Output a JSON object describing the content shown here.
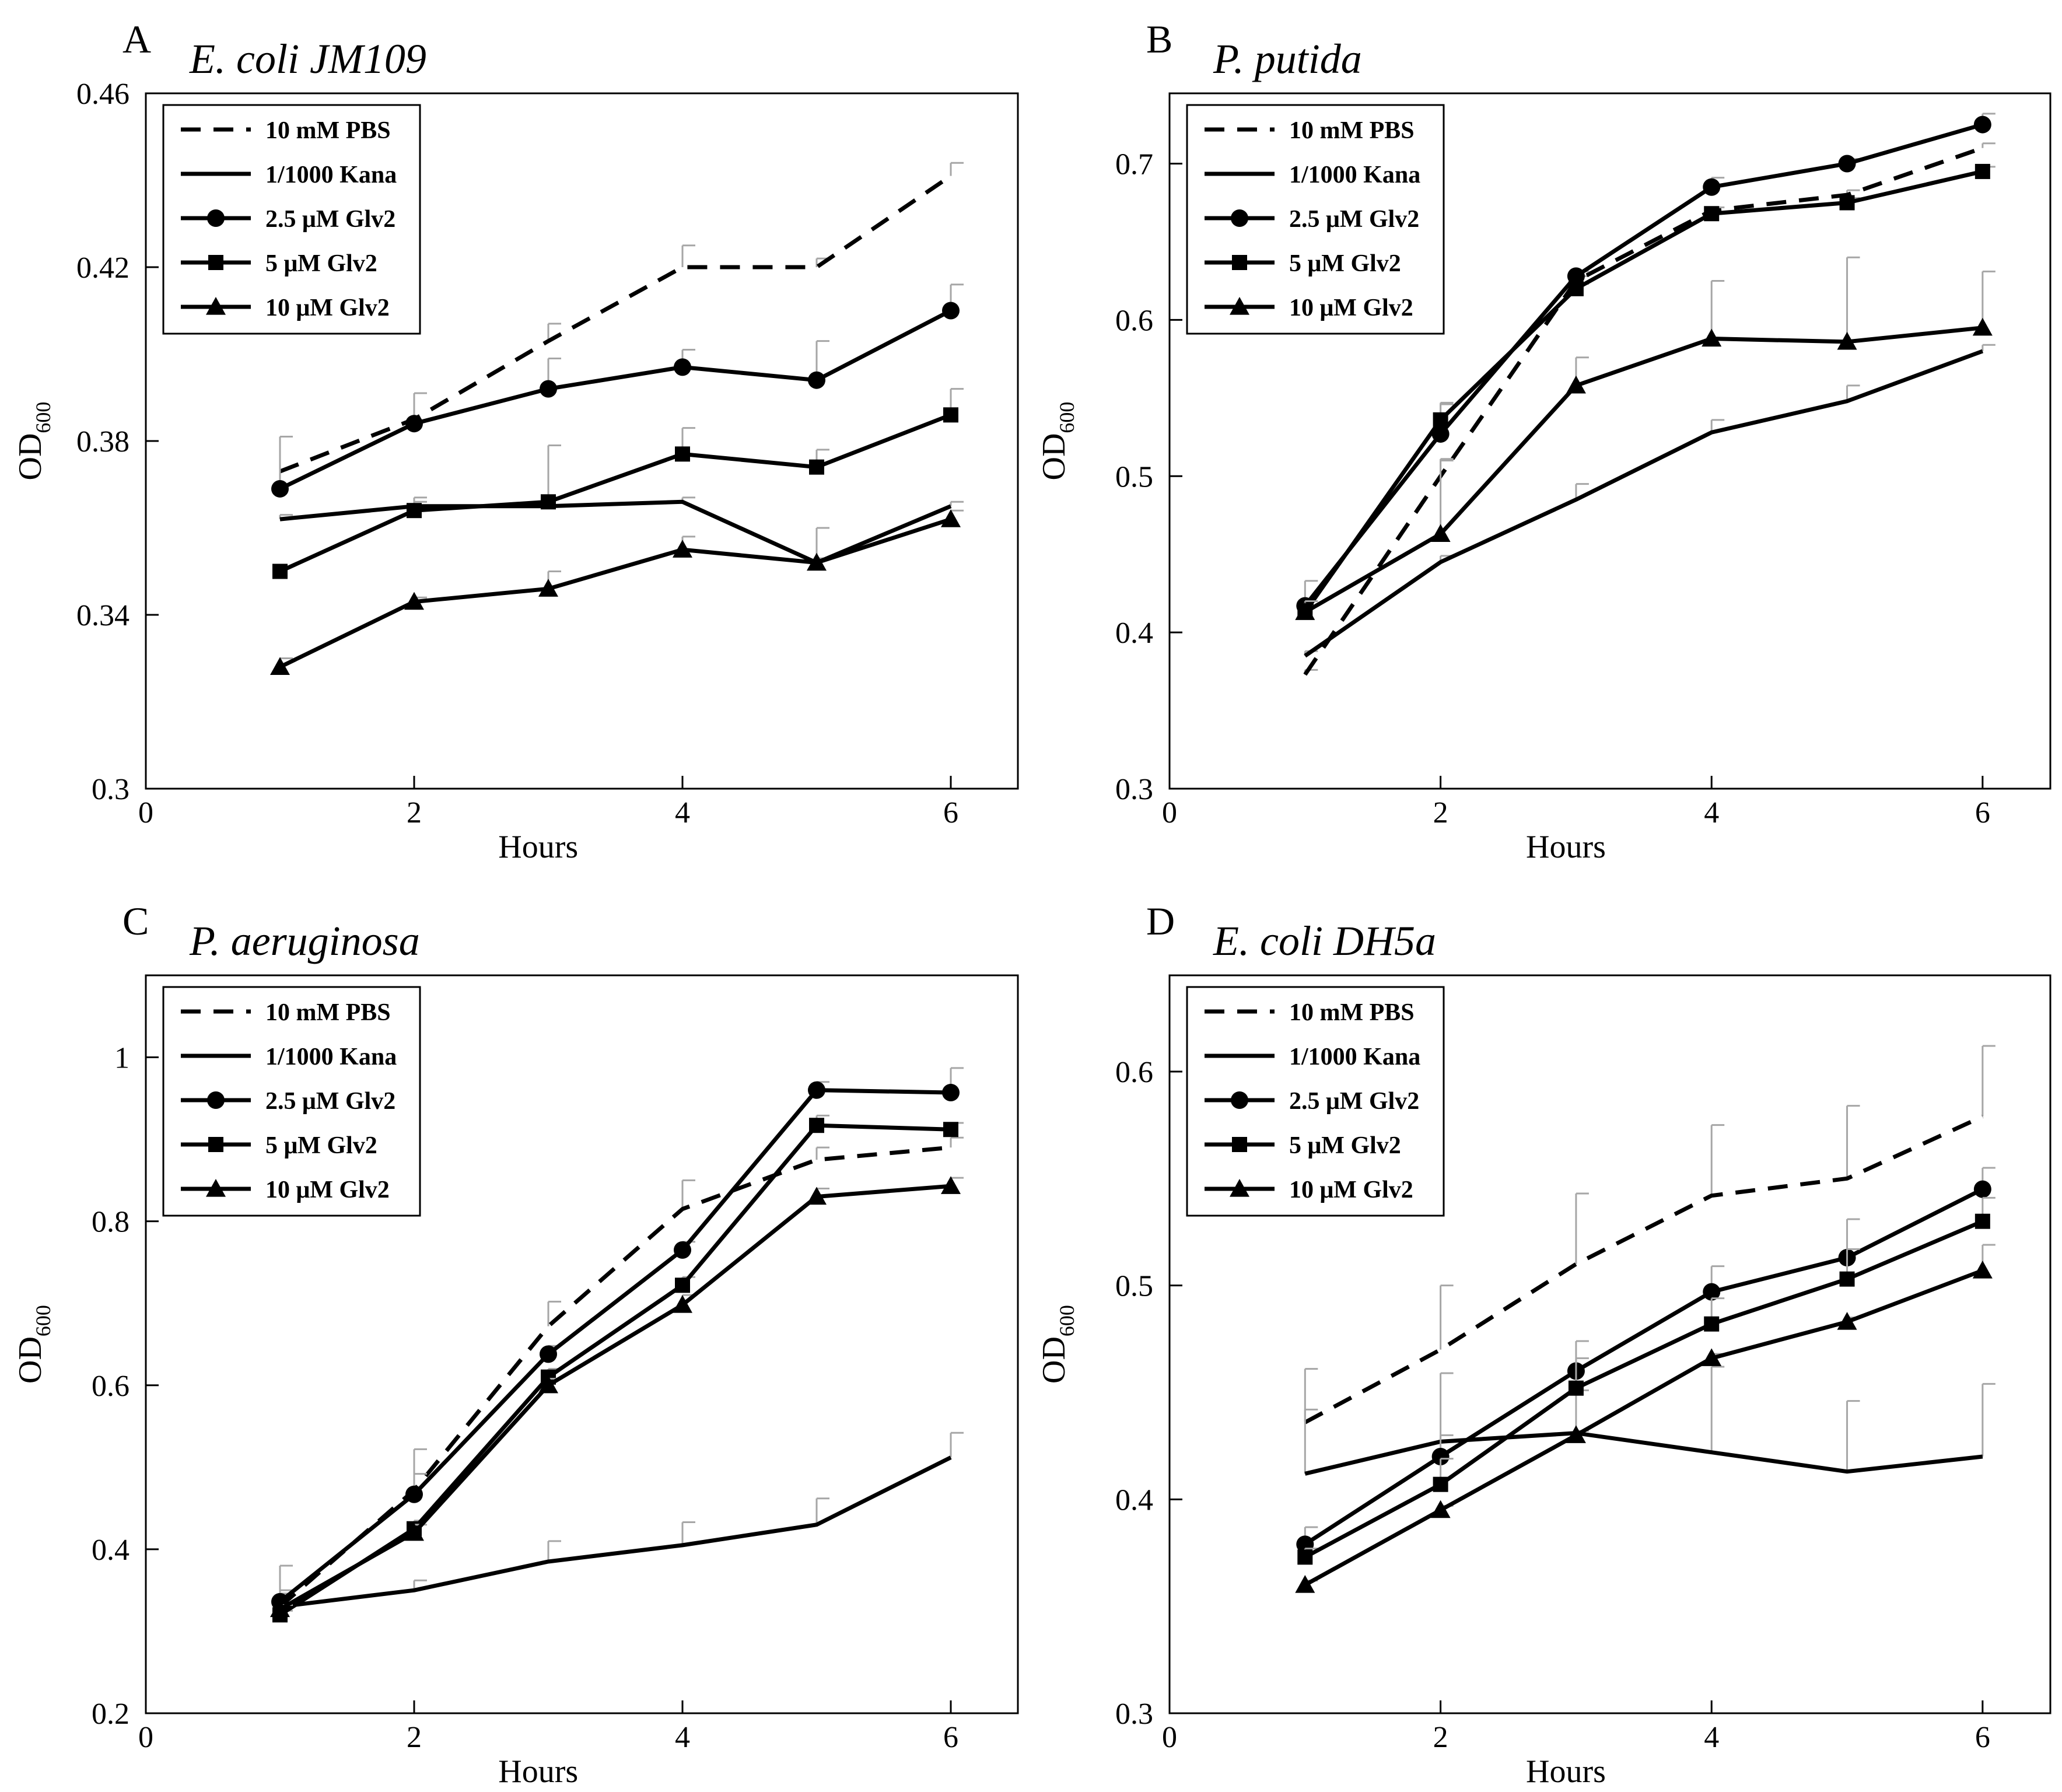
{
  "legend": [
    {
      "key": "pbs",
      "label": "10 mM PBS",
      "style": "dashed",
      "marker": "none"
    },
    {
      "key": "kana",
      "label": "1/1000 Kana",
      "style": "solid",
      "marker": "none"
    },
    {
      "key": "glv25",
      "label": "2.5 μM Glv2",
      "style": "solid",
      "marker": "circle"
    },
    {
      "key": "glv5",
      "label": "5 μM Glv2",
      "style": "solid",
      "marker": "square"
    },
    {
      "key": "glv10",
      "label": "10 μM Glv2",
      "style": "solid",
      "marker": "triangle"
    }
  ],
  "colors": {
    "series": "#000000",
    "errorbar": "#a6a6a6"
  },
  "chart_data": [
    {
      "type": "line",
      "panel": "A",
      "title": "E. coli JM109",
      "xlabel": "Hours",
      "ylabel": "OD",
      "ylabel_sub": "600",
      "xlim": [
        0,
        6.5
      ],
      "ylim": [
        0.3,
        0.46
      ],
      "xticks": [
        0,
        2,
        4,
        6
      ],
      "xtick_labels": [
        "0",
        "2",
        "4",
        "6"
      ],
      "yticks": [
        0.3,
        0.34,
        0.38,
        0.42,
        0.46
      ],
      "ytick_labels": [
        "0.3",
        "0.34",
        "0.38",
        "0.42",
        "0.46"
      ],
      "x": [
        1,
        2,
        3,
        4,
        5,
        6
      ],
      "series": [
        {
          "key": "pbs",
          "name": "10 mM PBS",
          "values": [
            0.373,
            0.385,
            0.403,
            0.42,
            0.42,
            0.441
          ],
          "errors": [
            0.008,
            0.006,
            0.004,
            0.005,
            0.002,
            0.003
          ]
        },
        {
          "key": "kana",
          "name": "1/1000 Kana",
          "values": [
            0.362,
            0.365,
            0.365,
            0.366,
            0.352,
            0.365
          ],
          "errors": [
            0.001,
            0.001,
            0.002,
            0.001,
            0.001,
            0.001
          ]
        },
        {
          "key": "glv25",
          "name": "2.5 μM Glv2",
          "values": [
            0.369,
            0.384,
            0.392,
            0.397,
            0.394,
            0.41
          ],
          "errors": [
            0.012,
            0.007,
            0.007,
            0.004,
            0.009,
            0.006
          ]
        },
        {
          "key": "glv5",
          "name": "5 μM Glv2",
          "values": [
            0.35,
            0.364,
            0.366,
            0.377,
            0.374,
            0.386
          ],
          "errors": [
            0.001,
            0.003,
            0.013,
            0.006,
            0.004,
            0.006
          ]
        },
        {
          "key": "glv10",
          "name": "10 μM Glv2",
          "values": [
            0.328,
            0.343,
            0.346,
            0.355,
            0.352,
            0.362
          ],
          "errors": [
            0.002,
            0.001,
            0.004,
            0.003,
            0.008,
            0.002
          ]
        }
      ]
    },
    {
      "type": "line",
      "panel": "B",
      "title": "P. putida",
      "xlabel": "Hours",
      "ylabel": "OD",
      "ylabel_sub": "600",
      "xlim": [
        0,
        6.5
      ],
      "ylim": [
        0.3,
        0.745
      ],
      "xticks": [
        0,
        2,
        4,
        6
      ],
      "xtick_labels": [
        "0",
        "2",
        "4",
        "6"
      ],
      "yticks": [
        0.3,
        0.4,
        0.5,
        0.6,
        0.7
      ],
      "ytick_labels": [
        "0.3",
        "0.4",
        "0.5",
        "0.6",
        "0.7"
      ],
      "x": [
        1,
        2,
        3,
        4,
        5,
        6
      ],
      "series": [
        {
          "key": "pbs",
          "name": "10 mM PBS",
          "values": [
            0.373,
            0.5,
            0.625,
            0.67,
            0.68,
            0.71
          ],
          "errors": [
            0.003,
            0.01,
            0.003,
            0.002,
            0.003,
            0.003
          ]
        },
        {
          "key": "kana",
          "name": "1/1000 Kana",
          "values": [
            0.385,
            0.445,
            0.485,
            0.528,
            0.548,
            0.58
          ],
          "errors": [
            0.003,
            0.004,
            0.01,
            0.008,
            0.01,
            0.004
          ]
        },
        {
          "key": "glv25",
          "name": "2.5 μM Glv2",
          "values": [
            0.417,
            0.527,
            0.628,
            0.685,
            0.7,
            0.725
          ],
          "errors": [
            0.016,
            0.02,
            0.003,
            0.006,
            0.003,
            0.007
          ]
        },
        {
          "key": "glv5",
          "name": "5 μM Glv2",
          "values": [
            0.413,
            0.536,
            0.62,
            0.668,
            0.675,
            0.695
          ],
          "errors": [
            0.004,
            0.01,
            0.003,
            0.004,
            0.003,
            0.003
          ]
        },
        {
          "key": "glv10",
          "name": "10 μM Glv2",
          "values": [
            0.413,
            0.463,
            0.558,
            0.588,
            0.586,
            0.595
          ],
          "errors": [
            0.007,
            0.048,
            0.018,
            0.037,
            0.054,
            0.036
          ]
        }
      ]
    },
    {
      "type": "line",
      "panel": "C",
      "title": "P. aeruginosa",
      "xlabel": "Hours",
      "ylabel": "OD",
      "ylabel_sub": "600",
      "xlim": [
        0,
        6.5
      ],
      "ylim": [
        0.2,
        1.1
      ],
      "xticks": [
        0,
        2,
        4,
        6
      ],
      "xtick_labels": [
        "0",
        "2",
        "4",
        "6"
      ],
      "yticks": [
        0.2,
        0.4,
        0.6,
        0.8,
        1.0
      ],
      "ytick_labels": [
        "0.2",
        "0.4",
        "0.6",
        "0.8",
        "1"
      ],
      "x": [
        1,
        2,
        3,
        4,
        5,
        6
      ],
      "series": [
        {
          "key": "pbs",
          "name": "10 mM PBS",
          "values": [
            0.33,
            0.472,
            0.672,
            0.815,
            0.875,
            0.89
          ],
          "errors": [
            0.05,
            0.05,
            0.03,
            0.035,
            0.015,
            0.012
          ]
        },
        {
          "key": "kana",
          "name": "1/1000 Kana",
          "values": [
            0.33,
            0.35,
            0.385,
            0.405,
            0.43,
            0.512
          ],
          "errors": [
            0.02,
            0.012,
            0.025,
            0.028,
            0.032,
            0.03
          ]
        },
        {
          "key": "glv25",
          "name": "2.5 μM Glv2",
          "values": [
            0.336,
            0.467,
            0.638,
            0.765,
            0.96,
            0.957
          ],
          "errors": [
            0.01,
            0.025,
            0.01,
            0.01,
            0.01,
            0.03
          ]
        },
        {
          "key": "glv5",
          "name": "5 μM Glv2",
          "values": [
            0.32,
            0.425,
            0.61,
            0.722,
            0.917,
            0.912
          ],
          "errors": [
            0.005,
            0.01,
            0.01,
            0.01,
            0.012,
            0.008
          ]
        },
        {
          "key": "glv10",
          "name": "10 μM Glv2",
          "values": [
            0.327,
            0.42,
            0.6,
            0.698,
            0.83,
            0.843
          ],
          "errors": [
            0.005,
            0.01,
            0.008,
            0.012,
            0.01,
            0.01
          ]
        }
      ]
    },
    {
      "type": "line",
      "panel": "D",
      "title": "E. coli DH5a",
      "xlabel": "Hours",
      "ylabel": "OD",
      "ylabel_sub": "600",
      "xlim": [
        0,
        6.5
      ],
      "ylim": [
        0.3,
        0.645
      ],
      "xticks": [
        0,
        2,
        4,
        6
      ],
      "xtick_labels": [
        "0",
        "2",
        "4",
        "6"
      ],
      "yticks": [
        0.3,
        0.4,
        0.5,
        0.6
      ],
      "ytick_labels": [
        "0.3",
        "0.4",
        "0.5",
        "0.6"
      ],
      "x": [
        1,
        2,
        3,
        4,
        5,
        6
      ],
      "series": [
        {
          "key": "pbs",
          "name": "10 mM PBS",
          "values": [
            0.436,
            0.47,
            0.51,
            0.542,
            0.55,
            0.579
          ],
          "errors": [
            0.025,
            0.03,
            0.033,
            0.033,
            0.034,
            0.033
          ]
        },
        {
          "key": "kana",
          "name": "1/1000 Kana",
          "values": [
            0.412,
            0.427,
            0.431,
            0.422,
            0.413,
            0.42
          ],
          "errors": [
            0.03,
            0.032,
            0.02,
            0.04,
            0.033,
            0.034
          ]
        },
        {
          "key": "glv25",
          "name": "2.5 μM Glv2",
          "values": [
            0.379,
            0.42,
            0.46,
            0.497,
            0.513,
            0.545
          ],
          "errors": [
            0.008,
            0.01,
            0.014,
            0.012,
            0.018,
            0.01
          ]
        },
        {
          "key": "glv5",
          "name": "5 μM Glv2",
          "values": [
            0.373,
            0.407,
            0.452,
            0.482,
            0.503,
            0.53
          ],
          "errors": [
            0.004,
            0.012,
            0.014,
            0.012,
            0.014,
            0.011
          ]
        },
        {
          "key": "glv10",
          "name": "10 μM Glv2",
          "values": [
            0.36,
            0.395,
            0.43,
            0.466,
            0.483,
            0.507
          ],
          "errors": [
            0.002,
            0.002,
            0.002,
            0.002,
            0.002,
            0.012
          ]
        }
      ]
    }
  ]
}
